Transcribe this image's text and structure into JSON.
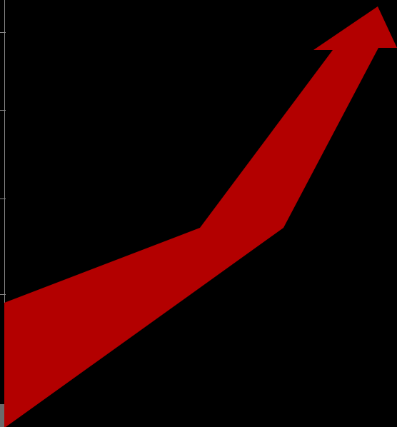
{
  "graphic": {
    "icon": "trend-up-arrow-icon",
    "arrow_color": "#b30000",
    "background_color": "#000000",
    "axis_color": "#8a8a8a",
    "corner_block_color": "#6b6b6b",
    "tick_count": 4
  }
}
